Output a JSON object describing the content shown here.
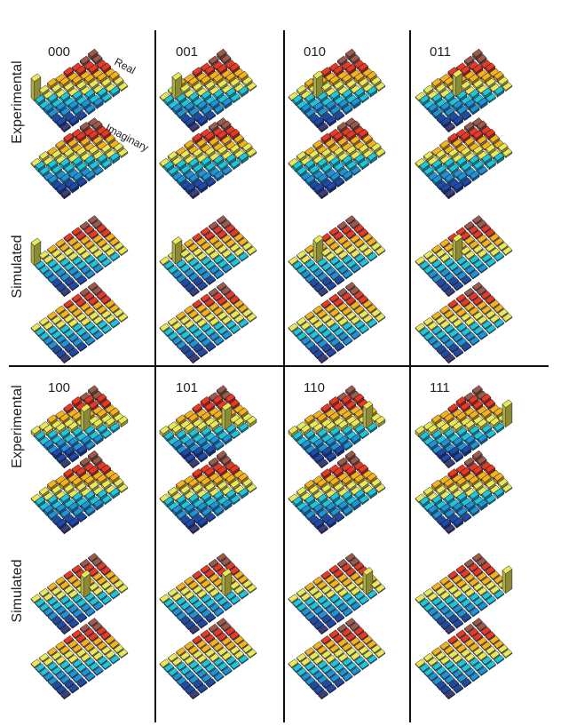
{
  "figure": {
    "row_labels": [
      "Experimental",
      "Simulated",
      "Experimental",
      "Simulated"
    ],
    "panel_labels": [
      "000",
      "001",
      "010",
      "011",
      "100",
      "101",
      "110",
      "111"
    ],
    "annotations": {
      "real": "Real",
      "imaginary": "Imaginary"
    },
    "grid_size": 8,
    "palette": [
      "#3b3f7a",
      "#1f4aa8",
      "#1f93d4",
      "#22c4d8",
      "#e8e85a",
      "#f3b31f",
      "#e53a24",
      "#9b5a4a"
    ]
  }
}
